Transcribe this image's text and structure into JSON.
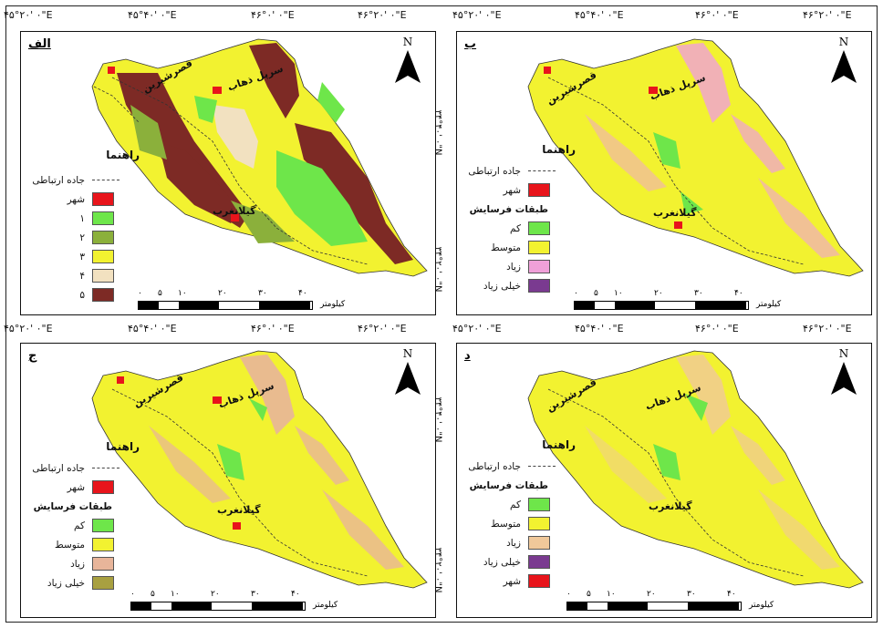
{
  "top_coords": [
    "۴۵°۲۰' ۰\"E",
    "۴۵°۴۰' ۰\"E",
    "۴۶°۰' ۰\"E",
    "۴۶°۲۰' ۰\"E"
  ],
  "mid_coords": [
    "۴۵°۲۰' ۰\"E",
    "۴۵°۴۰' ۰\"E",
    "۴۶°۰' ۰\"E",
    "۴۶°۲۰' ۰\"E"
  ],
  "lat_labels": [
    "۳۴°۴۰' ۰\"N",
    "۳۴°۲۰' ۰\"N"
  ],
  "north_label": "N",
  "cities": {
    "qasr": "قصرشیرین",
    "sarpol": "سرپل ذهاب",
    "gilan": "گیلانغرب"
  },
  "scale": {
    "ticks": [
      "۰",
      "۵",
      "۱۰",
      "۲۰",
      "۳۰",
      "۴۰"
    ],
    "unit": "کیلومتر"
  },
  "panels": [
    {
      "letter": "الف",
      "legend_title": "راهنما",
      "road_label": "جاده ارتباطی",
      "items": [
        {
          "label": "شهر",
          "color": "#e8141b"
        },
        {
          "label": "۱",
          "color": "#6ee64a"
        },
        {
          "label": "۲",
          "color": "#8bb03b"
        },
        {
          "label": "۳",
          "color": "#f2f230"
        },
        {
          "label": "۴",
          "color": "#f2e1c0"
        },
        {
          "label": "۵",
          "color": "#7d2a25"
        }
      ]
    },
    {
      "letter": "ب",
      "legend_title": "راهنما",
      "road_label": "جاده ارتباطی",
      "city_label": "شهر",
      "city_color": "#e8141b",
      "sub_title": "طبقات فرسایش",
      "items": [
        {
          "label": "کم",
          "color": "#6ee64a"
        },
        {
          "label": "متوسط",
          "color": "#f2f230"
        },
        {
          "label": "زیاد",
          "color": "#f0a0d8"
        },
        {
          "label": "خیلی زیاد",
          "color": "#7a3a90"
        }
      ]
    },
    {
      "letter": "ج",
      "legend_title": "راهنما",
      "road_label": "جاده ارتباطی",
      "city_label": "شهر",
      "city_color": "#e8141b",
      "sub_title": "طبقات فرسایش",
      "items": [
        {
          "label": "کم",
          "color": "#6ee64a"
        },
        {
          "label": "متوسط",
          "color": "#f2f230"
        },
        {
          "label": "زیاد",
          "color": "#e8b59a"
        },
        {
          "label": "خیلی زیاد",
          "color": "#a8a040"
        }
      ]
    },
    {
      "letter": "د",
      "legend_title": "راهنما",
      "road_label": "جاده ارتباطی",
      "sub_title": "طبقات فرسایش",
      "items": [
        {
          "label": "کم",
          "color": "#6ee64a"
        },
        {
          "label": "متوسط",
          "color": "#f2f230"
        },
        {
          "label": "زیاد",
          "color": "#f0c89a"
        },
        {
          "label": "خیلی زیاد",
          "color": "#7a3a90"
        },
        {
          "label": "شهر",
          "color": "#e8141b"
        }
      ]
    }
  ]
}
